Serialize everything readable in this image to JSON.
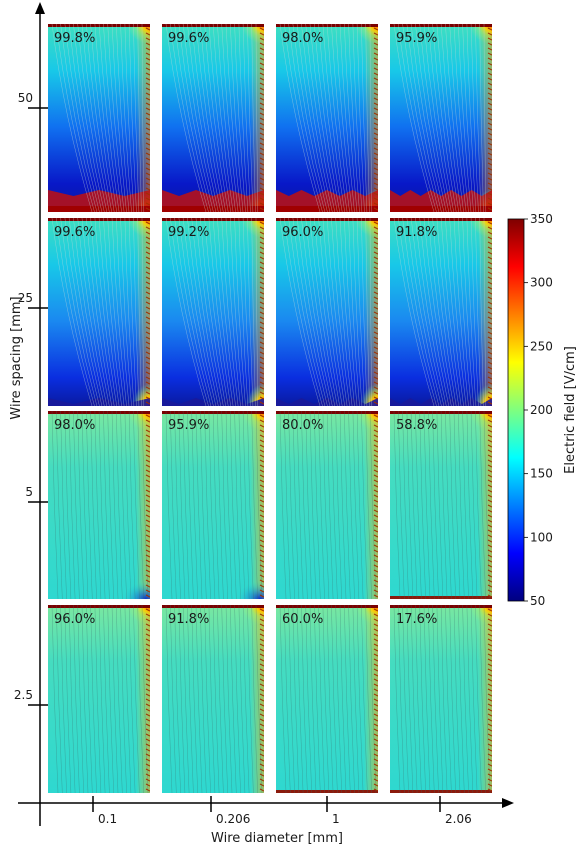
{
  "chart_data": {
    "type": "heatmap",
    "title": "",
    "xlabel": "Wire diameter [mm]",
    "ylabel": "Wire spacing [mm]",
    "x_ticks": [
      "0.1",
      "0.206",
      "1",
      "2.06"
    ],
    "y_ticks": [
      "50",
      "25",
      "5",
      "2.5"
    ],
    "colorbar": {
      "label": "Electric field [V/cm]",
      "min": 50,
      "max": 350,
      "ticks": [
        50,
        100,
        150,
        200,
        250,
        300,
        350
      ],
      "colormap": "jet"
    },
    "grid": false,
    "legend": "colorbar right",
    "panels": [
      {
        "wire_spacing_mm": 50,
        "values": [
          99.8,
          99.6,
          98.0,
          95.9
        ],
        "labels": [
          "99.8%",
          "99.6%",
          "98.0%",
          "95.9%"
        ]
      },
      {
        "wire_spacing_mm": 25,
        "values": [
          99.6,
          99.2,
          96.0,
          91.8
        ],
        "labels": [
          "99.6%",
          "99.2%",
          "96.0%",
          "91.8%"
        ]
      },
      {
        "wire_spacing_mm": 5,
        "values": [
          98.0,
          95.9,
          80.0,
          58.8
        ],
        "labels": [
          "98.0%",
          "95.9%",
          "80.0%",
          "58.8%"
        ]
      },
      {
        "wire_spacing_mm": 2.5,
        "values": [
          96.0,
          91.8,
          60.0,
          17.6
        ],
        "labels": [
          "96.0%",
          "91.8%",
          "60.0%",
          "17.6%"
        ]
      }
    ],
    "colors": {
      "jet": [
        "#00007f",
        "#0000ff",
        "#007fff",
        "#00ffff",
        "#7fff7f",
        "#ffff00",
        "#ff7f00",
        "#ff0000",
        "#7f0000"
      ],
      "field_base": "#35d3c6",
      "bottom_strip": "#8b1a0c",
      "axis": "#000000"
    }
  }
}
